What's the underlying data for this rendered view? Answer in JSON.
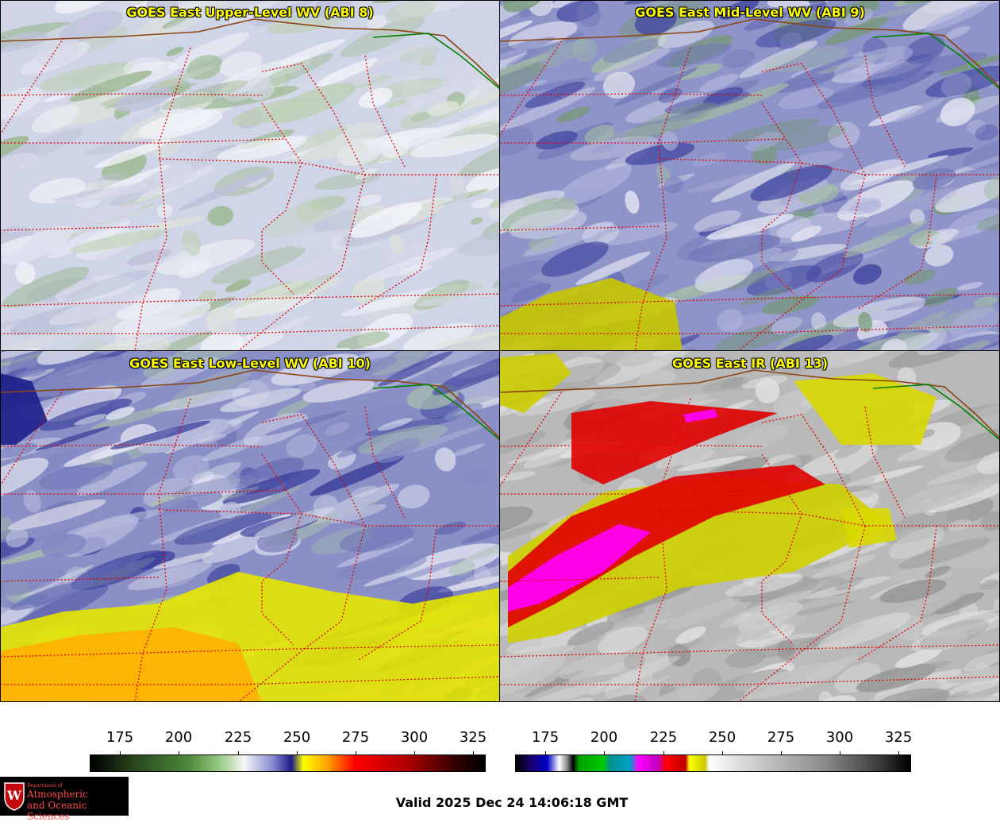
{
  "panels": [
    {
      "title": "GOES East Upper-Level WV (ABI 8)",
      "base": "#cfd4e6",
      "palette": [
        "#f4f6f8",
        "#e2e8d6",
        "#b9d0a6",
        "#86ad6c",
        "#d7dae8",
        "#b8bcd6",
        "#ffffff"
      ]
    },
    {
      "title": "GOES East Mid-Level WV (ABI 9)",
      "base": "#8e93c8",
      "palette": [
        "#2a2f94",
        "#6a70b4",
        "#b9bde0",
        "#f0f2f4",
        "#a9c99a",
        "#6e9c5c",
        "#ffffff"
      ]
    },
    {
      "title": "GOES East Low-Level WV (ABI 10)",
      "base": "#8a90c6",
      "palette": [
        "#1c1f8a",
        "#5d63ad",
        "#c8cbe4",
        "#f2f3f4",
        "#b3d0a3",
        "#ffffff",
        "#7f86c0"
      ]
    },
    {
      "title": "GOES East IR (ABI 13)",
      "base": "#b9b9b9",
      "palette": [
        "#9c9c9c",
        "#d2d2d2",
        "#ececec",
        "#8a8a8a",
        "#c4c4c4",
        "#f4f4f4"
      ]
    }
  ],
  "colorbars": [
    {
      "ticks": [
        "175",
        "200",
        "225",
        "250",
        "275",
        "300",
        "325"
      ],
      "gradient": "linear-gradient(to right, #000000 0%, #2c4a20 12%, #4b8a3a 25%, #9ccc88 33%, #f6f6f6 39%, #8a8fd0 46%, #1c1c86 51%, #ffff00 54%, #ffa500 60%, #ff0000 67%, #b00000 80%, #300000 93%, #000000 100%)"
    },
    {
      "ticks": [
        "175",
        "200",
        "225",
        "250",
        "275",
        "300",
        "325"
      ],
      "gradient": "linear-gradient(to right, #000000 0%, #1a0070 4%, #0000c8 8%, #ffffff 11%, #888888 13%, #000000 14.5%, #00a000 16%, #00cc00 22%, #009090 24%, #00a0c8 29%, #ff00ff 31%, #c000c0 36%, #ff0000 38%, #c00000 43%, #ffff00 44%, #c8c800 48%, #ffffff 49%, #cfcfcf 60%, #8c8c8c 78%, #3c3c3c 92%, #000000 100%)"
    }
  ],
  "logo": {
    "line1": "Department of",
    "line2": "Atmospheric",
    "line3": "and Oceanic Sciences",
    "seal_letter": "W"
  },
  "valid_time": "Valid 2025 Dec 24 14:06:18 GMT"
}
